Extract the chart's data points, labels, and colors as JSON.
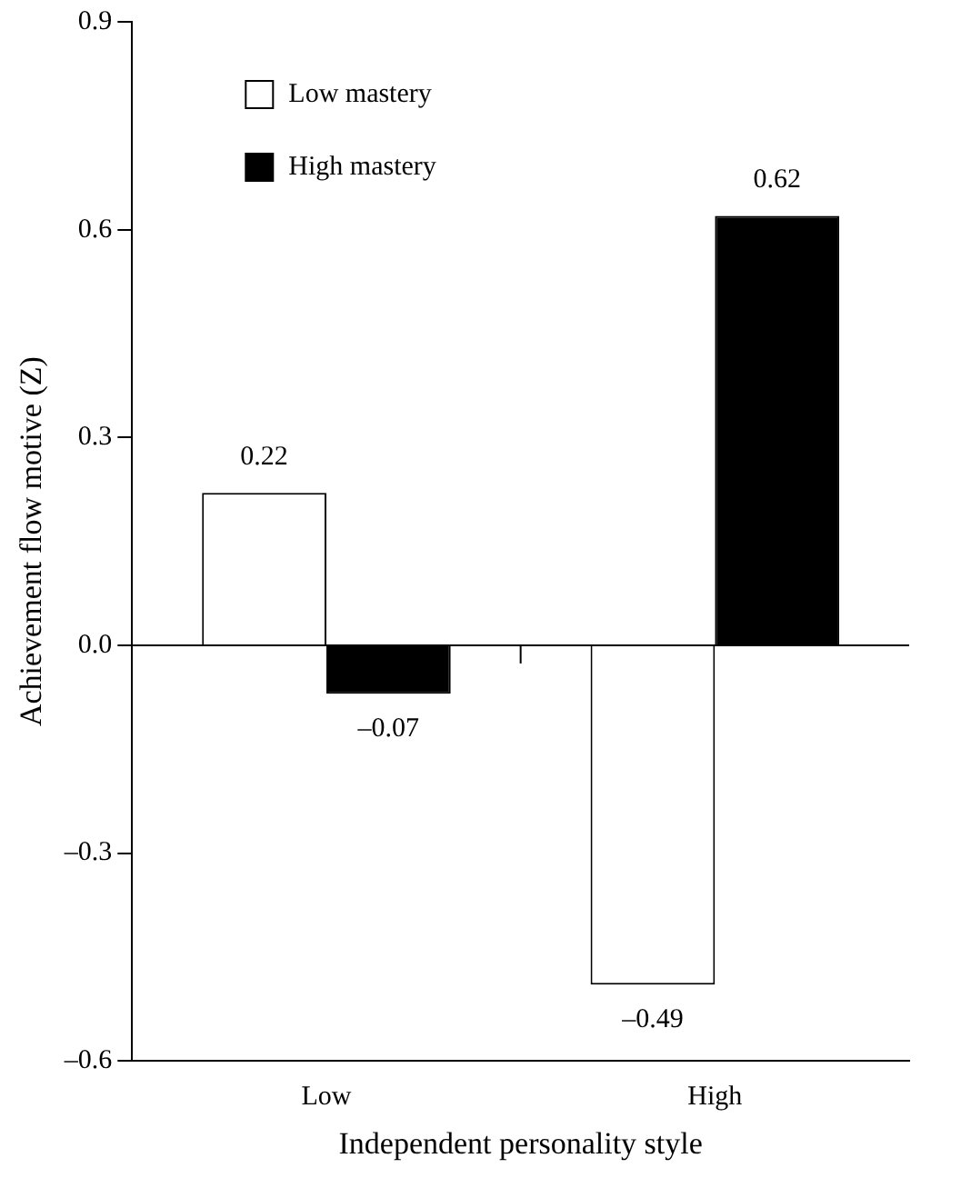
{
  "chart_data": {
    "type": "bar",
    "xlabel": "Independent personality style",
    "ylabel": "Achievement flow motive (Z)",
    "categories": [
      "Low",
      "High"
    ],
    "series": [
      {
        "name": "Low mastery",
        "color": "#ffffff",
        "values": [
          0.22,
          -0.49
        ],
        "value_labels": [
          "0.22",
          "–0.49"
        ]
      },
      {
        "name": "High mastery",
        "color": "#000000",
        "values": [
          -0.07,
          0.62
        ],
        "value_labels": [
          "–0.07",
          "0.62"
        ]
      }
    ],
    "ylim": [
      -0.6,
      0.9
    ],
    "yticks": [
      {
        "value": -0.6,
        "label": "–0.6"
      },
      {
        "value": -0.3,
        "label": "–0.3"
      },
      {
        "value": 0,
        "label": "0.0"
      },
      {
        "value": 0.3,
        "label": "0.3"
      },
      {
        "value": 0.6,
        "label": "0.6"
      },
      {
        "value": 0.9,
        "label": "0.9"
      }
    ],
    "ref_lines": [
      {
        "axis": "y",
        "value": 0,
        "color": "#000000"
      }
    ],
    "legend": "top left",
    "grid": false
  }
}
